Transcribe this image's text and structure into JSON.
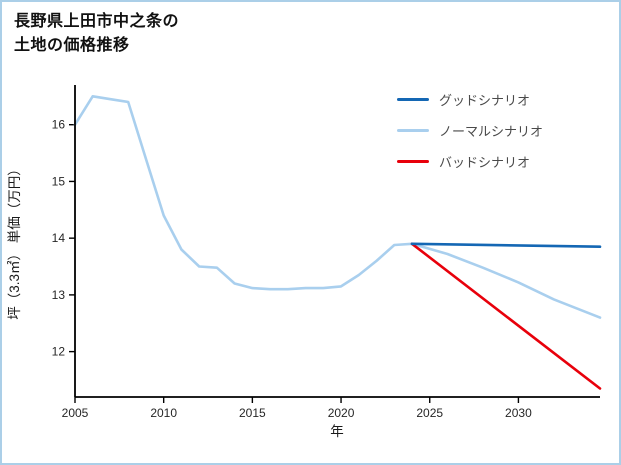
{
  "title": {
    "line1": "長野県上田市中之条の",
    "line2": "土地の価格推移"
  },
  "colors": {
    "page_border": "#abcfe8",
    "axis": "#000000",
    "tick_label": "#262626",
    "legend_text": "#4a4a4a"
  },
  "chart_data": {
    "type": "line",
    "title": "長野県上田市中之条の土地の価格推移",
    "xlabel": "年",
    "ylabel": "坪（3.3㎡） 単価（万円）",
    "xlim": [
      2005,
      2034.6
    ],
    "ylim": [
      11.2,
      16.7
    ],
    "x_ticks": [
      2005,
      2010,
      2015,
      2020,
      2025,
      2030
    ],
    "y_ticks": [
      12,
      13,
      14,
      15,
      16
    ],
    "grid": false,
    "legend": {
      "position": "upper right",
      "entries": [
        "グッドシナリオ",
        "ノーマルシナリオ",
        "バッドシナリオ"
      ]
    },
    "series": [
      {
        "name": "ノーマルシナリオ",
        "color": "#a9cfee",
        "x": [
          2005,
          2006,
          2007,
          2008,
          2009,
          2010,
          2011,
          2012,
          2013,
          2014,
          2015,
          2016,
          2017,
          2018,
          2019,
          2020,
          2021,
          2022,
          2023,
          2024,
          2026,
          2028,
          2030,
          2032,
          2034.6
        ],
        "y": [
          16.0,
          16.5,
          16.45,
          16.4,
          15.4,
          14.4,
          13.8,
          13.5,
          13.48,
          13.2,
          13.12,
          13.1,
          13.1,
          13.12,
          13.12,
          13.15,
          13.35,
          13.6,
          13.88,
          13.9,
          13.72,
          13.48,
          13.22,
          12.92,
          12.6
        ]
      },
      {
        "name": "バッドシナリオ",
        "color": "#e8000b",
        "x": [
          2024,
          2034.6
        ],
        "y": [
          13.9,
          11.35
        ]
      },
      {
        "name": "グッドシナリオ",
        "color": "#1467b4",
        "x": [
          2024,
          2034.6
        ],
        "y": [
          13.9,
          13.85
        ]
      }
    ]
  }
}
